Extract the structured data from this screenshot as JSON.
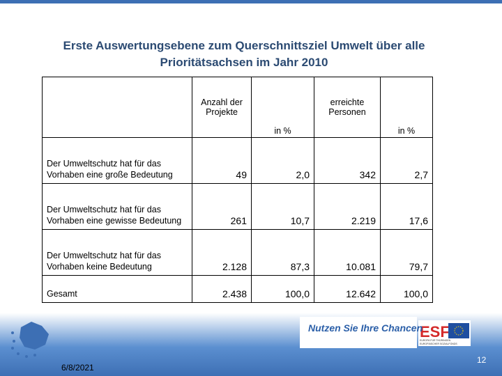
{
  "header": {
    "title": "Erste Auswertungsebene zum Querschnittsziel Umwelt über alle Prioritätsachsen im Jahr 2010"
  },
  "table": {
    "columns": [
      "",
      "Anzahl der Projekte",
      "in %",
      "erreichte Personen",
      "in %"
    ],
    "rows": [
      [
        "Der Umweltschutz hat für das Vorhaben eine große Bedeutung",
        "49",
        "2,0",
        "342",
        "2,7"
      ],
      [
        "Der Umweltschutz hat für das Vorhaben eine gewisse Bedeutung",
        "261",
        "10,7",
        "2.219",
        "17,6"
      ],
      [
        "Der Umweltschutz hat für das Vorhaben keine Bedeutung",
        "2.128",
        "87,3",
        "10.081",
        "79,7"
      ],
      [
        "Gesamt",
        "2.438",
        "100,0",
        "12.642",
        "100,0"
      ]
    ]
  },
  "footer": {
    "slogan": "Nutzen Sie Ihre Chancen",
    "logo": "ESF",
    "logo_sub1": "EUROPA FÜR THÜRINGEN",
    "logo_sub2": "EUROPÄISCHER SOZIALFONDS",
    "date": "6/8/2021",
    "page": "12"
  }
}
